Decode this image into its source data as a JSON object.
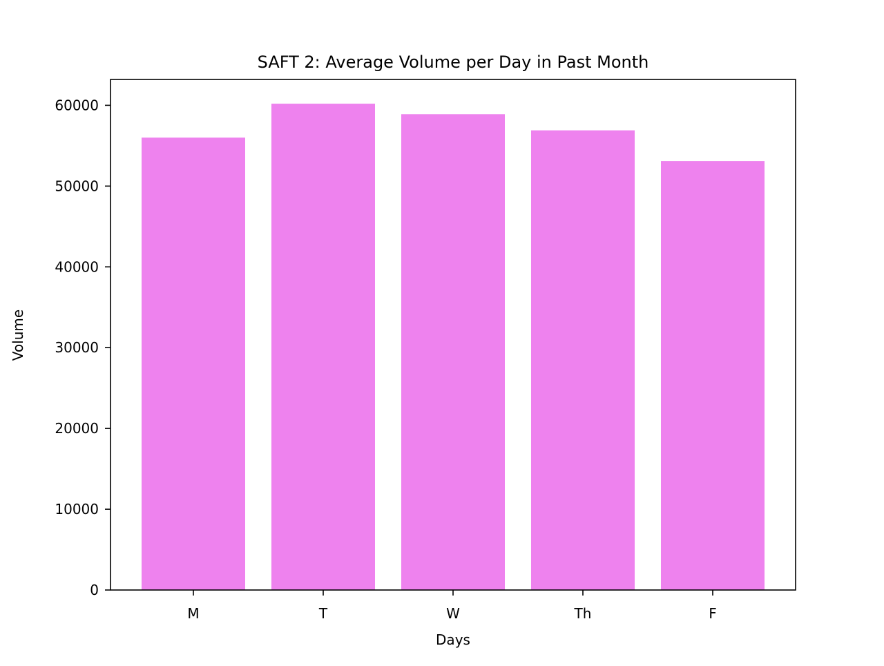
{
  "chart_data": {
    "type": "bar",
    "title": "SAFT 2: Average Volume per Day in Past Month",
    "xlabel": "Days",
    "ylabel": "Volume",
    "categories": [
      "M",
      "T",
      "W",
      "Th",
      "F"
    ],
    "values": [
      56000,
      60200,
      58900,
      56900,
      53100
    ],
    "ylim": [
      0,
      63200
    ],
    "yticks": [
      0,
      10000,
      20000,
      30000,
      40000,
      50000,
      60000
    ],
    "ytick_labels": [
      "0",
      "10000",
      "20000",
      "30000",
      "40000",
      "50000",
      "60000"
    ],
    "bar_color": "#ee82ee",
    "grid": false,
    "legend": "none"
  }
}
